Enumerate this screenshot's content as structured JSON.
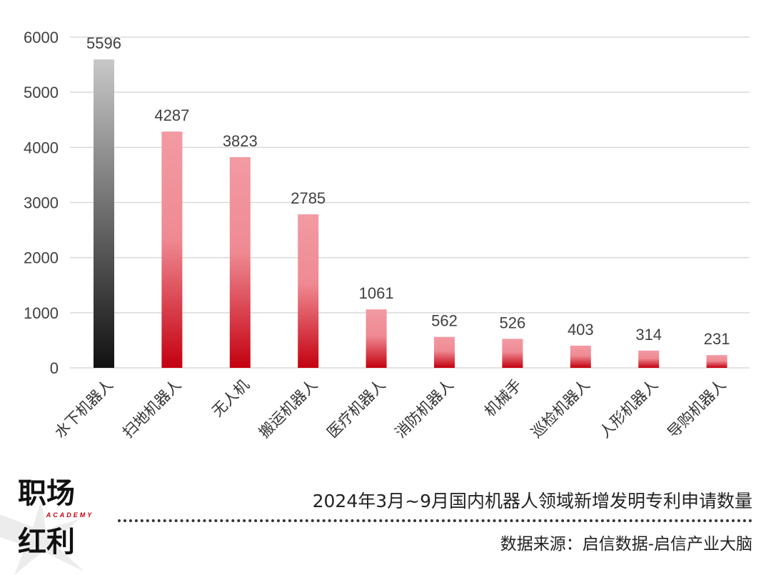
{
  "chart_data": {
    "type": "bar",
    "categories": [
      "水下机器人",
      "扫地机器人",
      "无人机",
      "搬运机器人",
      "医疗机器人",
      "消防机器人",
      "机械手",
      "巡检机器人",
      "人形机器人",
      "导购机器人"
    ],
    "values": [
      5596,
      4287,
      3823,
      2785,
      1061,
      562,
      526,
      403,
      314,
      231
    ],
    "yticks": [
      "0",
      "1000",
      "2000",
      "3000",
      "4000",
      "5000",
      "6000"
    ],
    "ylim": [
      0,
      6000
    ],
    "grid": true,
    "legend": "none",
    "colors": {
      "first_bar_top": "#c8c8c8",
      "first_bar_bottom": "#111111",
      "bar_top": "#f29aa2",
      "bar_bottom": "#c4000f",
      "grid": "#d9d9d9"
    },
    "title": "2024年3月~9月国内机器人领域新增发明专利申请数量",
    "source": "数据来源：启信数据-启信产业大脑"
  },
  "logo": {
    "line1": "职场",
    "tagline": "ACADEMY",
    "line2": "红利"
  }
}
